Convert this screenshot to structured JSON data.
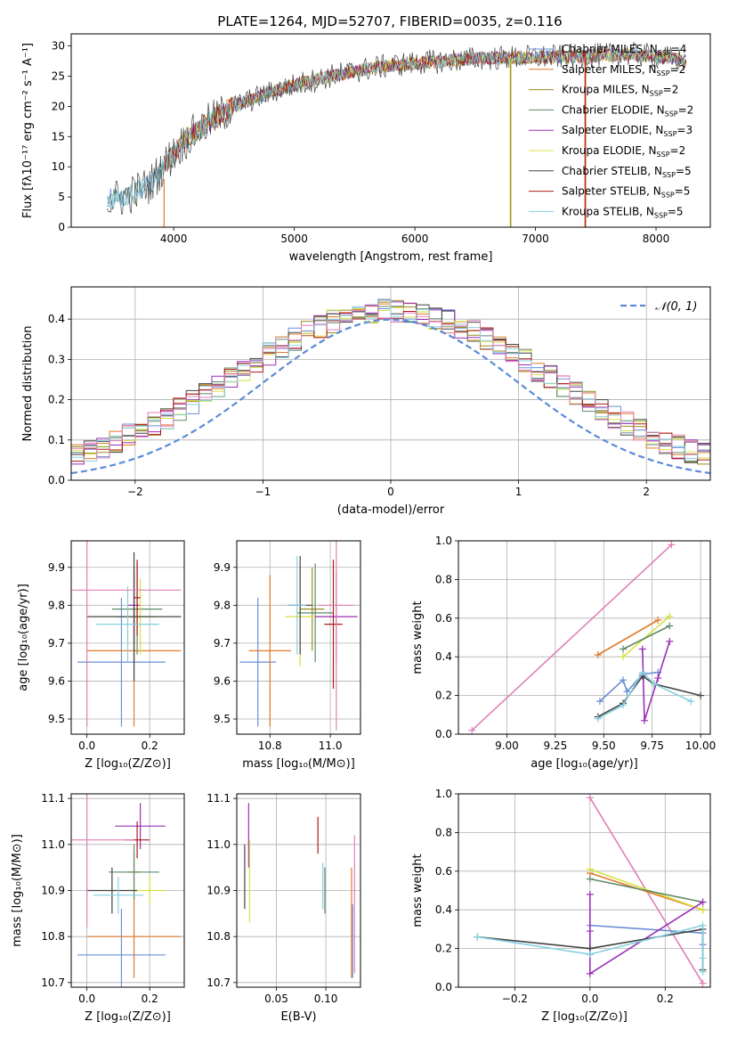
{
  "figure_title": "PLATE=1264, MJD=52707, FIBERID=0035, z=0.116",
  "colors": {
    "Chabrier MILES": "#6a8fd6",
    "Salpeter MILES": "#e07b2a",
    "Kroupa MILES": "#9a8a20",
    "Chabrier ELODIE": "#5e8a66",
    "Salpeter ELODIE": "#9a2fb8",
    "Kroupa ELODIE": "#d8e040",
    "Chabrier STELIB": "#444444",
    "Salpeter STELIB": "#b01818",
    "Kroupa STELIB": "#86cfe0",
    "Pink": "#e080b8",
    "Normal": "#5b8bd6"
  },
  "chart_data": [
    {
      "type": "line",
      "id": "spectrum",
      "title": "",
      "xlabel": "wavelength [Angstrom, rest frame]",
      "ylabel": "Flux [fλ10⁻¹⁷ erg cm⁻² s⁻¹ A⁻¹]",
      "xlim": [
        3150,
        8450
      ],
      "ylim": [
        0,
        32
      ],
      "xticks": [
        4000,
        5000,
        6000,
        7000,
        8000
      ],
      "yticks": [
        0,
        5,
        10,
        15,
        20,
        25,
        30
      ],
      "legend_position": "top-right",
      "legend": [
        {
          "label": "Chabrier MILES, N",
          "sub": "SSP",
          "tail": "=4",
          "color": "#6a8fd6"
        },
        {
          "label": "Salpeter MILES, N",
          "sub": "SSP",
          "tail": "=2",
          "color": "#e07b2a"
        },
        {
          "label": "Kroupa MILES, N",
          "sub": "SSP",
          "tail": "=2",
          "color": "#9a8a20"
        },
        {
          "label": "Chabrier ELODIE, N",
          "sub": "SSP",
          "tail": "=2",
          "color": "#5e8a66"
        },
        {
          "label": "Salpeter ELODIE, N",
          "sub": "SSP",
          "tail": "=3",
          "color": "#9a2fb8"
        },
        {
          "label": "Kroupa ELODIE, N",
          "sub": "SSP",
          "tail": "=2",
          "color": "#d8e040"
        },
        {
          "label": "Chabrier STELIB, N",
          "sub": "SSP",
          "tail": "=5",
          "color": "#444444"
        },
        {
          "label": "Salpeter STELIB, N",
          "sub": "SSP",
          "tail": "=5",
          "color": "#b01818"
        },
        {
          "label": "Kroupa STELIB, N",
          "sub": "SSP",
          "tail": "=5",
          "color": "#86cfe0"
        }
      ],
      "trend": {
        "x": [
          3450,
          3600,
          3800,
          3950,
          4100,
          4300,
          4500,
          4700,
          4900,
          5100,
          5300,
          5500,
          5700,
          5900,
          6100,
          6300,
          6500,
          6700,
          6900,
          7100,
          7300,
          7500,
          7700,
          7900,
          8100,
          8250
        ],
        "y": [
          4.5,
          5.0,
          7.0,
          11.0,
          14.5,
          17.5,
          20.0,
          21.5,
          23.0,
          24.0,
          25.0,
          25.8,
          26.5,
          27.0,
          27.3,
          27.6,
          27.9,
          28.0,
          28.1,
          28.2,
          28.2,
          28.4,
          28.6,
          28.5,
          28.0,
          27.5
        ]
      },
      "vertical_drops": [
        {
          "x": 3920,
          "from_y": 8,
          "color": "#e07b2a"
        },
        {
          "x": 6790,
          "from_y": 28,
          "color": "#d8e040"
        },
        {
          "x": 6795,
          "from_y": 28,
          "color": "#9a8a20"
        },
        {
          "x": 7410,
          "from_y": 28,
          "color": "#e07b2a"
        },
        {
          "x": 7415,
          "from_y": 28,
          "color": "#b01818"
        }
      ]
    },
    {
      "type": "area",
      "id": "residual_histogram",
      "title": "",
      "xlabel": "(data-model)/error",
      "ylabel": "Normed distribution",
      "xlim": [
        -2.5,
        2.5
      ],
      "ylim": [
        0,
        0.48
      ],
      "xticks": [
        -2,
        -1,
        0,
        1,
        2
      ],
      "yticks": [
        0.0,
        0.1,
        0.2,
        0.3,
        0.4
      ],
      "bin_width": 0.1,
      "legend_position": "top-right",
      "legend": [
        {
          "label": "𝒩(0, 1)",
          "color": "#5b8bd6"
        }
      ],
      "normal_curve": {
        "mu": 0,
        "sigma": 1
      }
    },
    {
      "type": "scatter",
      "id": "age_vs_Z",
      "xlabel": "Z [log₁₀(Z/Z⊙)]",
      "ylabel": "age  [log₁₀(age/yr)]",
      "xlim": [
        -0.05,
        0.31
      ],
      "ylim": [
        9.46,
        9.97
      ],
      "xticks": [
        0.0,
        0.2
      ],
      "yticks": [
        9.5,
        9.6,
        9.7,
        9.8,
        9.9
      ],
      "points": [
        {
          "x": 0.11,
          "y": 9.65,
          "xerr": 0.14,
          "yerr": 0.17,
          "color": "#6a8fd6"
        },
        {
          "x": 0.15,
          "y": 9.68,
          "xerr": 0.15,
          "yerr": 0.2,
          "color": "#e07b2a"
        },
        {
          "x": 0.15,
          "y": 9.77,
          "xerr": 0.06,
          "yerr": 0.12,
          "color": "#9a8a20"
        },
        {
          "x": 0.16,
          "y": 9.79,
          "xerr": 0.08,
          "yerr": 0.12,
          "color": "#5e8a66"
        },
        {
          "x": 0.15,
          "y": 9.8,
          "xerr": 0.02,
          "yerr": 0.1,
          "color": "#9a2fb8"
        },
        {
          "x": 0.17,
          "y": 9.77,
          "xerr": 0.06,
          "yerr": 0.1,
          "color": "#d8e040"
        },
        {
          "x": 0.15,
          "y": 9.77,
          "xerr": 0.15,
          "yerr": 0.17,
          "color": "#444444"
        },
        {
          "x": 0.16,
          "y": 9.82,
          "xerr": 0.01,
          "yerr": 0.1,
          "color": "#b01818"
        },
        {
          "x": 0.13,
          "y": 9.75,
          "xerr": 0.1,
          "yerr": 0.1,
          "color": "#86cfe0"
        },
        {
          "x": 0.0,
          "y": 9.84,
          "xerr": 0.3,
          "yerr": 0.36,
          "color": "#e080b8"
        }
      ]
    },
    {
      "type": "scatter",
      "id": "age_vs_mass",
      "xlabel": "mass [log₁₀(M/M⊙)]",
      "ylabel": "",
      "xlim": [
        10.69,
        11.1
      ],
      "ylim": [
        9.46,
        9.97
      ],
      "xticks": [
        10.8,
        11.0
      ],
      "yticks": [
        9.5,
        9.6,
        9.7,
        9.8,
        9.9
      ],
      "points": [
        {
          "x": 10.76,
          "y": 9.65,
          "xerr": 0.06,
          "yerr": 0.17,
          "color": "#6a8fd6"
        },
        {
          "x": 10.8,
          "y": 9.68,
          "xerr": 0.07,
          "yerr": 0.2,
          "color": "#e07b2a"
        },
        {
          "x": 10.94,
          "y": 9.79,
          "xerr": 0.04,
          "yerr": 0.11,
          "color": "#9a8a20"
        },
        {
          "x": 10.95,
          "y": 9.78,
          "xerr": 0.06,
          "yerr": 0.13,
          "color": "#5e8a66"
        },
        {
          "x": 11.02,
          "y": 9.77,
          "xerr": 0.07,
          "yerr": 0.12,
          "color": "#9a2fb8"
        },
        {
          "x": 10.9,
          "y": 9.77,
          "xerr": 0.05,
          "yerr": 0.13,
          "color": "#d8e040"
        },
        {
          "x": 10.9,
          "y": 9.8,
          "xerr": 0.04,
          "yerr": 0.13,
          "color": "#444444"
        },
        {
          "x": 11.01,
          "y": 9.75,
          "xerr": 0.03,
          "yerr": 0.17,
          "color": "#b01818"
        },
        {
          "x": 10.89,
          "y": 9.8,
          "xerr": 0.03,
          "yerr": 0.13,
          "color": "#86cfe0"
        },
        {
          "x": 11.02,
          "y": 9.8,
          "xerr": 0.06,
          "yerr": 0.33,
          "color": "#e080b8"
        }
      ]
    },
    {
      "type": "line",
      "id": "mass_weight_vs_age",
      "xlabel": "age  [log₁₀(age/yr)]",
      "ylabel": "mass weight",
      "xlim": [
        8.75,
        10.05
      ],
      "ylim": [
        0.0,
        1.0
      ],
      "xticks": [
        9.0,
        9.25,
        9.5,
        9.75,
        10.0
      ],
      "yticks": [
        0.0,
        0.2,
        0.4,
        0.6,
        0.8,
        1.0
      ],
      "series": [
        {
          "color": "#e080b8",
          "x": [
            8.82,
            9.85
          ],
          "y": [
            0.02,
            0.98
          ]
        },
        {
          "color": "#e07b2a",
          "x": [
            9.47,
            9.78
          ],
          "y": [
            0.41,
            0.59
          ]
        },
        {
          "color": "#d8e040",
          "x": [
            9.6,
            9.84
          ],
          "y": [
            0.4,
            0.61
          ]
        },
        {
          "color": "#5e8a66",
          "x": [
            9.6,
            9.84
          ],
          "y": [
            0.44,
            0.56
          ]
        },
        {
          "color": "#6a8fd6",
          "x": [
            9.48,
            9.6,
            9.62,
            9.7,
            9.78
          ],
          "y": [
            0.17,
            0.28,
            0.22,
            0.31,
            0.32
          ]
        },
        {
          "color": "#9a2fb8",
          "x": [
            9.7,
            9.71,
            9.78,
            9.84
          ],
          "y": [
            0.44,
            0.07,
            0.29,
            0.48
          ]
        },
        {
          "color": "#444444",
          "x": [
            9.47,
            9.6,
            9.7,
            9.76,
            10.0
          ],
          "y": [
            0.09,
            0.16,
            0.3,
            0.26,
            0.2
          ]
        },
        {
          "color": "#86cfe0",
          "x": [
            9.47,
            9.6,
            9.7,
            9.76,
            9.95
          ],
          "y": [
            0.08,
            0.15,
            0.32,
            0.26,
            0.17
          ]
        }
      ]
    },
    {
      "type": "scatter",
      "id": "mass_vs_Z",
      "xlabel": "Z [log₁₀(Z/Z⊙)]",
      "ylabel": "mass [log₁₀(M/M⊙)]",
      "xlim": [
        -0.05,
        0.31
      ],
      "ylim": [
        10.69,
        11.11
      ],
      "xticks": [
        0.0,
        0.2
      ],
      "yticks": [
        10.7,
        10.8,
        10.9,
        11.0,
        11.1
      ],
      "points": [
        {
          "x": 0.11,
          "y": 10.76,
          "xerr": 0.14,
          "yerr": 0.1,
          "color": "#6a8fd6"
        },
        {
          "x": 0.15,
          "y": 10.8,
          "xerr": 0.15,
          "yerr": 0.09,
          "color": "#e07b2a"
        },
        {
          "x": 0.15,
          "y": 10.94,
          "xerr": 0.02,
          "yerr": 0.04,
          "color": "#9a8a20"
        },
        {
          "x": 0.15,
          "y": 10.94,
          "xerr": 0.08,
          "yerr": 0.06,
          "color": "#5e8a66"
        },
        {
          "x": 0.17,
          "y": 11.04,
          "xerr": 0.08,
          "yerr": 0.05,
          "color": "#9a2fb8"
        },
        {
          "x": 0.2,
          "y": 10.9,
          "xerr": 0.05,
          "yerr": 0.03,
          "color": "#d8e040"
        },
        {
          "x": 0.08,
          "y": 10.9,
          "xerr": 0.08,
          "yerr": 0.05,
          "color": "#444444"
        },
        {
          "x": 0.16,
          "y": 11.01,
          "xerr": 0.04,
          "yerr": 0.04,
          "color": "#b01818"
        },
        {
          "x": 0.1,
          "y": 10.89,
          "xerr": 0.08,
          "yerr": 0.04,
          "color": "#86cfe0"
        },
        {
          "x": 0.0,
          "y": 11.01,
          "xerr": 0.15,
          "yerr": 0.19,
          "color": "#e080b8"
        }
      ]
    },
    {
      "type": "scatter",
      "id": "mass_vs_ebv",
      "xlabel": "E(B-V)",
      "ylabel": "",
      "xlim": [
        0.01,
        0.135
      ],
      "ylim": [
        10.69,
        11.11
      ],
      "xticks": [
        0.05,
        0.1
      ],
      "yticks": [
        10.7,
        10.8,
        10.9,
        11.0,
        11.1
      ],
      "points": [
        {
          "x": 0.018,
          "y": 10.93,
          "yerr": 0.07,
          "color": "#444444"
        },
        {
          "x": 0.022,
          "y": 11.02,
          "yerr": 0.07,
          "color": "#9a2fb8"
        },
        {
          "x": 0.023,
          "y": 10.92,
          "yerr": 0.09,
          "color": "#d8e040"
        },
        {
          "x": 0.092,
          "y": 11.02,
          "yerr": 0.04,
          "color": "#b01818"
        },
        {
          "x": 0.097,
          "y": 10.91,
          "yerr": 0.05,
          "color": "#86cfe0"
        },
        {
          "x": 0.099,
          "y": 10.9,
          "yerr": 0.05,
          "color": "#5e8a66"
        },
        {
          "x": 0.126,
          "y": 10.83,
          "yerr": 0.12,
          "color": "#e07b2a"
        },
        {
          "x": 0.127,
          "y": 10.79,
          "yerr": 0.08,
          "color": "#6a8fd6"
        },
        {
          "x": 0.129,
          "y": 10.87,
          "yerr": 0.15,
          "color": "#e080b8"
        }
      ]
    },
    {
      "type": "line",
      "id": "mass_weight_vs_Z",
      "xlabel": "Z [log₁₀(Z/Z⊙)]",
      "ylabel": "mass weight",
      "xlim": [
        -0.35,
        0.32
      ],
      "ylim": [
        0.0,
        1.0
      ],
      "xticks": [
        -0.2,
        0.0,
        0.2
      ],
      "yticks": [
        0.0,
        0.2,
        0.4,
        0.6,
        0.8,
        1.0
      ],
      "series": [
        {
          "color": "#e080b8",
          "x": [
            0.0,
            0.3
          ],
          "y": [
            0.98,
            0.02
          ]
        },
        {
          "color": "#e07b2a",
          "x": [
            0.0,
            0.3
          ],
          "y": [
            0.59,
            0.4
          ]
        },
        {
          "color": "#d8e040",
          "x": [
            0.0,
            0.3
          ],
          "y": [
            0.61,
            0.4
          ]
        },
        {
          "color": "#5e8a66",
          "x": [
            0.0,
            0.3
          ],
          "y": [
            0.56,
            0.44
          ]
        },
        {
          "color": "#6a8fd6",
          "x": [
            0.0,
            0.0,
            0.3,
            0.3
          ],
          "y": [
            0.17,
            0.32,
            0.28,
            0.22
          ]
        },
        {
          "color": "#9a2fb8",
          "x": [
            0.0,
            0.0,
            0.0,
            0.3
          ],
          "y": [
            0.48,
            0.29,
            0.07,
            0.44
          ]
        },
        {
          "color": "#444444",
          "x": [
            -0.3,
            0.0,
            0.3,
            0.3
          ],
          "y": [
            0.26,
            0.2,
            0.3,
            0.09
          ]
        },
        {
          "color": "#86cfe0",
          "x": [
            -0.3,
            0.0,
            0.3,
            0.3,
            0.3
          ],
          "y": [
            0.26,
            0.17,
            0.32,
            0.15,
            0.08
          ]
        }
      ]
    }
  ]
}
